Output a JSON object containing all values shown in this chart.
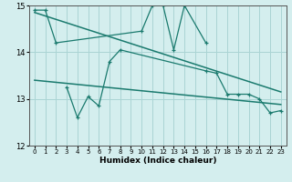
{
  "xlabel": "Humidex (Indice chaleur)",
  "bg_color": "#d4eeee",
  "grid_color": "#aad4d4",
  "line_color": "#1a7a6e",
  "x_values": [
    0,
    1,
    2,
    3,
    4,
    5,
    6,
    7,
    8,
    9,
    10,
    11,
    12,
    13,
    14,
    15,
    16,
    17,
    18,
    19,
    20,
    21,
    22,
    23
  ],
  "series1": [
    14.9,
    14.9,
    14.2,
    null,
    null,
    null,
    null,
    null,
    null,
    null,
    14.45,
    15.0,
    15.0,
    14.05,
    15.0,
    null,
    14.2,
    null,
    null,
    null,
    null,
    null,
    null,
    null
  ],
  "series2": [
    null,
    null,
    null,
    13.25,
    12.6,
    13.05,
    12.85,
    13.8,
    14.05,
    null,
    null,
    null,
    null,
    null,
    null,
    null,
    13.6,
    13.55,
    13.1,
    13.1,
    13.1,
    13.0,
    12.7,
    12.75
  ],
  "trend1_x": [
    0,
    23
  ],
  "trend1_y": [
    14.85,
    13.15
  ],
  "trend2_x": [
    0,
    23
  ],
  "trend2_y": [
    13.4,
    12.88
  ],
  "ylim": [
    12,
    15
  ],
  "xlim": [
    -0.5,
    23.5
  ],
  "yticks": [
    12,
    13,
    14,
    15
  ],
  "xticks": [
    0,
    1,
    2,
    3,
    4,
    5,
    6,
    7,
    8,
    9,
    10,
    11,
    12,
    13,
    14,
    15,
    16,
    17,
    18,
    19,
    20,
    21,
    22,
    23
  ]
}
